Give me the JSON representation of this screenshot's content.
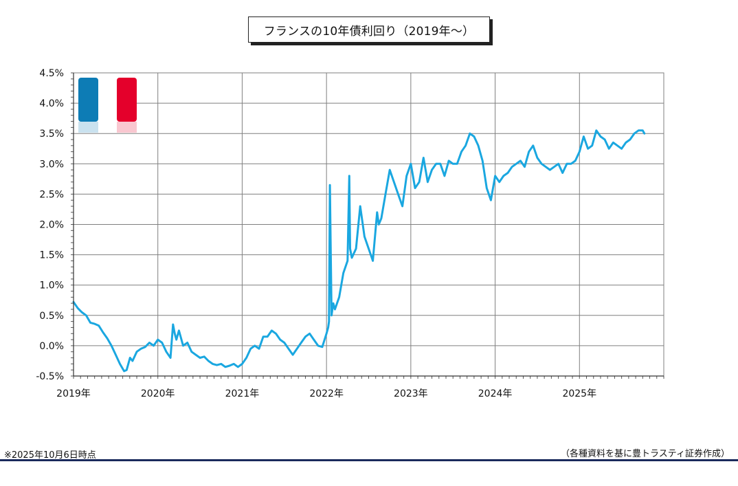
{
  "chart_data": {
    "type": "line",
    "title": "フランスの10年債利回り（2019年～）",
    "xlabel": "",
    "ylabel": "",
    "ylim": [
      -0.5,
      4.5
    ],
    "xlim": [
      2019.0,
      2026.0
    ],
    "grid": true,
    "y_ticks": [
      "4.5%",
      "4.0%",
      "3.5%",
      "3.0%",
      "2.5%",
      "2.0%",
      "1.5%",
      "1.0%",
      "0.5%",
      "0.0%",
      "-0.5%"
    ],
    "y_tick_values": [
      4.5,
      4.0,
      3.5,
      3.0,
      2.5,
      2.0,
      1.5,
      1.0,
      0.5,
      0.0,
      -0.5
    ],
    "x_ticks": [
      "2019年",
      "2020年",
      "2021年",
      "2022年",
      "2023年",
      "2024年",
      "2025年"
    ],
    "x_tick_values": [
      2019,
      2020,
      2021,
      2022,
      2023,
      2024,
      2025
    ],
    "series": [
      {
        "color": "#1aa7e0",
        "x": [
          2019.0,
          2019.05,
          2019.1,
          2019.15,
          2019.2,
          2019.25,
          2019.3,
          2019.35,
          2019.4,
          2019.45,
          2019.5,
          2019.55,
          2019.6,
          2019.63,
          2019.67,
          2019.7,
          2019.75,
          2019.8,
          2019.85,
          2019.9,
          2019.95,
          2020.0,
          2020.05,
          2020.1,
          2020.15,
          2020.18,
          2020.2,
          2020.22,
          2020.25,
          2020.3,
          2020.35,
          2020.4,
          2020.45,
          2020.5,
          2020.55,
          2020.6,
          2020.65,
          2020.7,
          2020.75,
          2020.8,
          2020.85,
          2020.9,
          2020.95,
          2021.0,
          2021.05,
          2021.1,
          2021.15,
          2021.2,
          2021.25,
          2021.3,
          2021.35,
          2021.4,
          2021.45,
          2021.5,
          2021.55,
          2021.6,
          2021.65,
          2021.7,
          2021.75,
          2021.8,
          2021.85,
          2021.9,
          2021.95,
          2022.0,
          2022.02,
          2022.03,
          2022.04,
          2022.06,
          2022.08,
          2022.1,
          2022.15,
          2022.2,
          2022.25,
          2022.27,
          2022.28,
          2022.3,
          2022.35,
          2022.4,
          2022.45,
          2022.5,
          2022.55,
          2022.6,
          2022.62,
          2022.65,
          2022.7,
          2022.75,
          2022.8,
          2022.85,
          2022.9,
          2022.95,
          2023.0,
          2023.05,
          2023.1,
          2023.15,
          2023.2,
          2023.25,
          2023.3,
          2023.35,
          2023.4,
          2023.45,
          2023.5,
          2023.55,
          2023.6,
          2023.65,
          2023.7,
          2023.75,
          2023.8,
          2023.85,
          2023.9,
          2023.95,
          2024.0,
          2024.05,
          2024.1,
          2024.15,
          2024.2,
          2024.25,
          2024.3,
          2024.35,
          2024.4,
          2024.45,
          2024.5,
          2024.55,
          2024.6,
          2024.65,
          2024.7,
          2024.75,
          2024.8,
          2024.85,
          2024.9,
          2024.95,
          2025.0,
          2025.05,
          2025.1,
          2025.15,
          2025.2,
          2025.25,
          2025.3,
          2025.35,
          2025.4,
          2025.45,
          2025.5,
          2025.55,
          2025.6,
          2025.65,
          2025.7,
          2025.75,
          2025.77
        ],
        "y": [
          0.72,
          0.62,
          0.55,
          0.5,
          0.38,
          0.36,
          0.33,
          0.22,
          0.12,
          0.0,
          -0.15,
          -0.3,
          -0.42,
          -0.4,
          -0.2,
          -0.25,
          -0.1,
          -0.05,
          -0.02,
          0.05,
          0.0,
          0.1,
          0.05,
          -0.1,
          -0.2,
          0.35,
          0.2,
          0.1,
          0.25,
          0.0,
          0.05,
          -0.1,
          -0.15,
          -0.2,
          -0.18,
          -0.25,
          -0.3,
          -0.32,
          -0.3,
          -0.35,
          -0.33,
          -0.3,
          -0.35,
          -0.3,
          -0.2,
          -0.05,
          0.0,
          -0.05,
          0.15,
          0.15,
          0.25,
          0.2,
          0.1,
          0.05,
          -0.05,
          -0.15,
          -0.05,
          0.05,
          0.15,
          0.2,
          0.1,
          0.0,
          -0.02,
          0.2,
          0.3,
          0.4,
          2.65,
          0.5,
          0.7,
          0.6,
          0.8,
          1.2,
          1.4,
          2.8,
          1.6,
          1.45,
          1.6,
          2.3,
          1.8,
          1.6,
          1.4,
          2.2,
          2.0,
          2.1,
          2.5,
          2.9,
          2.7,
          2.5,
          2.3,
          2.8,
          3.0,
          2.6,
          2.7,
          3.1,
          2.7,
          2.9,
          3.0,
          3.0,
          2.8,
          3.05,
          3.0,
          3.0,
          3.2,
          3.3,
          3.5,
          3.45,
          3.3,
          3.05,
          2.6,
          2.4,
          2.8,
          2.7,
          2.8,
          2.85,
          2.95,
          3.0,
          3.05,
          2.95,
          3.2,
          3.3,
          3.1,
          3.0,
          2.95,
          2.9,
          2.95,
          3.0,
          2.85,
          3.0,
          3.0,
          3.05,
          3.2,
          3.45,
          3.25,
          3.3,
          3.55,
          3.45,
          3.4,
          3.25,
          3.35,
          3.3,
          3.25,
          3.35,
          3.4,
          3.5,
          3.55,
          3.55,
          3.5
        ]
      }
    ]
  },
  "flag_colors": {
    "blue": "#0d7cb5",
    "white": "#ffffff",
    "red": "#e4002b"
  },
  "axis_colors": {
    "negative_tick": "#e00000",
    "grid": "#7f7f7f"
  },
  "footer": {
    "note_left": "※2025年10月6日時点",
    "source_right": "（各種資料を基に豊トラスティ証券作成）"
  }
}
